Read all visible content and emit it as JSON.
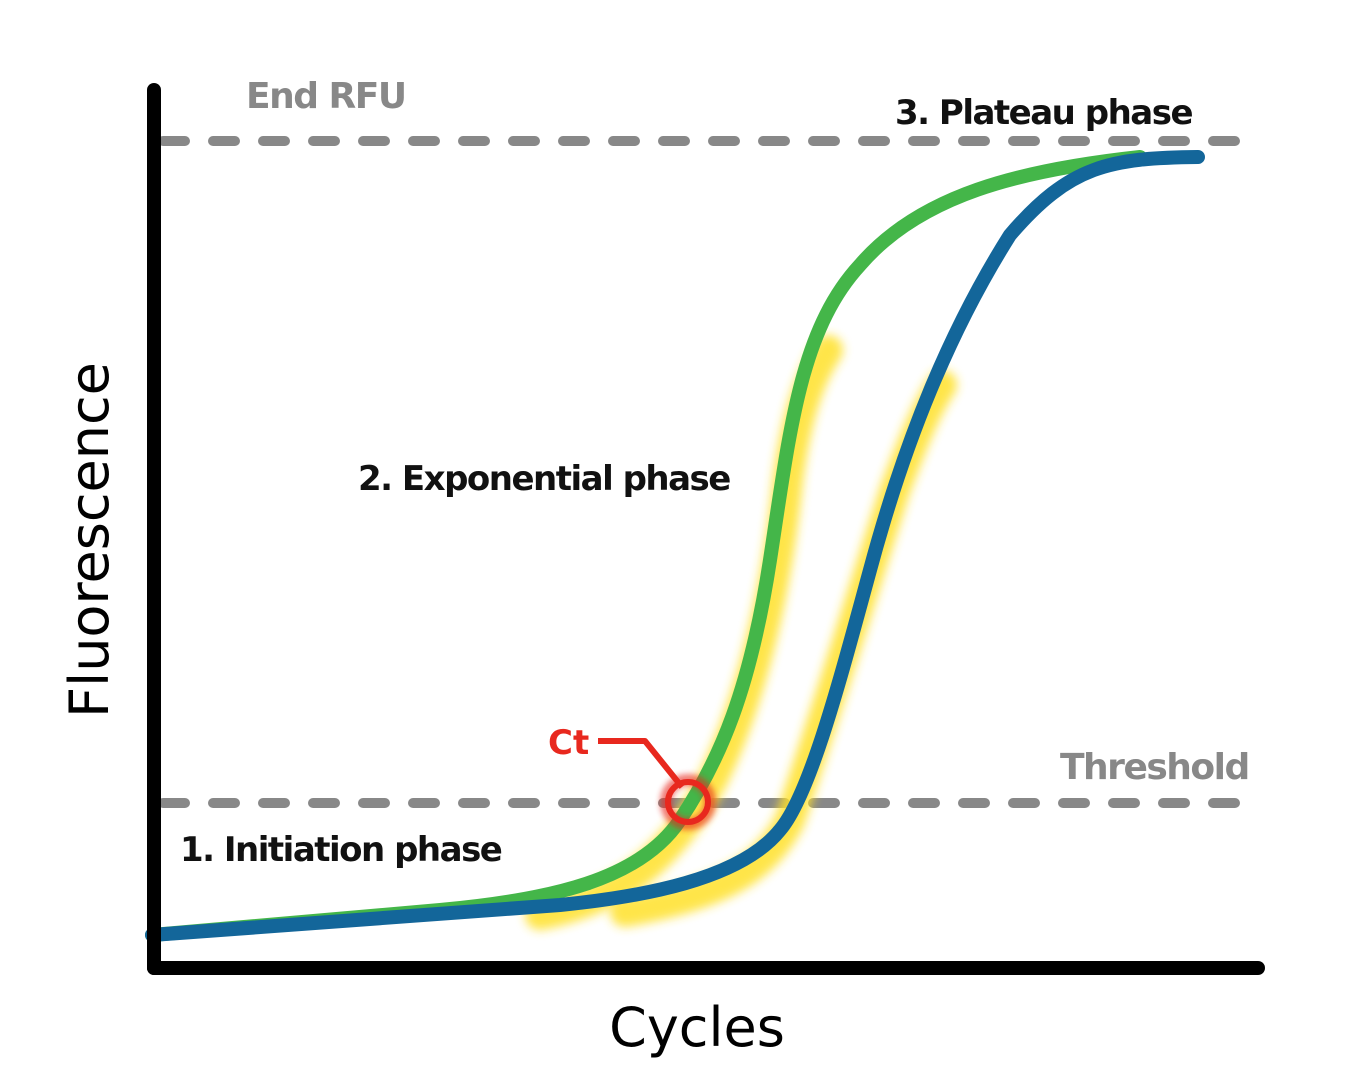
{
  "axes": {
    "x_label": "Cycles",
    "y_label": "Fluorescence"
  },
  "reference_lines": {
    "end_rfu": "End RFU",
    "threshold": "Threshold"
  },
  "phases": {
    "initiation": "1. Initiation phase",
    "exponential": "2. Exponential phase",
    "plateau": "3. Plateau phase"
  },
  "ct": {
    "label": "Ct"
  },
  "colors": {
    "axis": "#000000",
    "reference_line": "#888888",
    "curve_green": "#44b649",
    "curve_blue": "#13669a",
    "exponential_highlight": "#ffe12a",
    "ct_marker": "#e8281e"
  }
}
